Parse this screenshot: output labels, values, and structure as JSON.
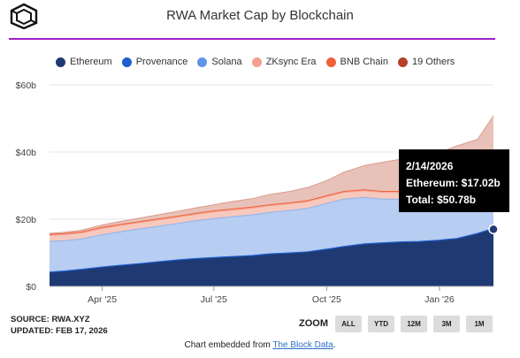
{
  "title": "RWA Market Cap by Blockchain",
  "logo_icon": "blockchain-cube-logo",
  "legend": [
    {
      "label": "Ethereum",
      "color": "#1f3a73"
    },
    {
      "label": "Provenance",
      "color": "#1f5fcf"
    },
    {
      "label": "Solana",
      "color": "#5e95e8"
    },
    {
      "label": "ZKsync Era",
      "color": "#f3a08e"
    },
    {
      "label": "BNB Chain",
      "color": "#f0603a"
    },
    {
      "label": "19 Others",
      "color": "#b8402a"
    }
  ],
  "footer": {
    "source": "SOURCE: RWA.XYZ",
    "updated": "UPDATED: FEB 17, 2026"
  },
  "zoom": {
    "label": "ZOOM",
    "buttons": [
      "ALL",
      "YTD",
      "12M",
      "3M",
      "1M"
    ]
  },
  "embed": {
    "prefix": "Chart embedded from ",
    "link": "The Block Data",
    "suffix": "."
  },
  "tooltip": {
    "date": "2/14/2026",
    "series_line": "Ethereum: $17.02b",
    "total_line": "Total: $50.78b"
  },
  "chart_data": {
    "type": "area",
    "stacked": true,
    "title": "RWA Market Cap by Blockchain",
    "y_ticks": [
      "$0",
      "$20b",
      "$40b",
      "$60b"
    ],
    "y_tick_values": [
      0,
      20,
      40,
      60
    ],
    "ylim": [
      0,
      60
    ],
    "y_unit": "billions USD",
    "x_ticks": [
      "Apr '25",
      "Jul '25",
      "Oct '25",
      "Jan '26"
    ],
    "x_tick_dates": [
      "2025-04-01",
      "2025-07-01",
      "2025-10-01",
      "2026-01-01"
    ],
    "x": [
      "2025-02-17",
      "2025-03-01",
      "2025-03-15",
      "2025-04-01",
      "2025-04-15",
      "2025-05-01",
      "2025-05-15",
      "2025-06-01",
      "2025-06-15",
      "2025-07-01",
      "2025-07-15",
      "2025-08-01",
      "2025-08-15",
      "2025-09-01",
      "2025-09-15",
      "2025-10-01",
      "2025-10-15",
      "2025-11-01",
      "2025-11-15",
      "2025-12-01",
      "2025-12-15",
      "2026-01-01",
      "2026-01-15",
      "2026-02-01",
      "2026-02-14"
    ],
    "series": [
      {
        "name": "Ethereum",
        "color": "#1f3a73",
        "values": [
          4.0,
          4.3,
          4.8,
          5.5,
          6.0,
          6.5,
          7.0,
          7.6,
          8.0,
          8.3,
          8.6,
          8.9,
          9.4,
          9.7,
          10.0,
          10.8,
          11.6,
          12.4,
          12.7,
          13.0,
          13.1,
          13.5,
          14.0,
          15.5,
          17.02
        ]
      },
      {
        "name": "Provenance",
        "color": "#1f5fcf",
        "values": [
          0.3,
          0.3,
          0.3,
          0.3,
          0.3,
          0.3,
          0.3,
          0.3,
          0.3,
          0.3,
          0.3,
          0.3,
          0.3,
          0.3,
          0.3,
          0.3,
          0.3,
          0.3,
          0.3,
          0.3,
          0.3,
          0.3,
          0.3,
          0.3,
          0.3
        ]
      },
      {
        "name": "Solana",
        "color": "#5e95e8",
        "values": [
          9.1,
          9.0,
          9.0,
          9.6,
          9.9,
          10.3,
          10.5,
          10.8,
          11.2,
          11.6,
          11.8,
          12.1,
          12.3,
          12.6,
          12.9,
          13.6,
          14.1,
          13.8,
          13.0,
          12.7,
          12.5,
          12.2,
          11.7,
          9.7,
          8.2
        ]
      },
      {
        "name": "ZKsync Era",
        "color": "#f3a08e",
        "values": [
          1.8,
          1.8,
          1.8,
          1.9,
          1.9,
          1.9,
          1.9,
          1.9,
          1.9,
          2.0,
          2.0,
          2.0,
          2.0,
          2.0,
          2.0,
          2.0,
          2.0,
          2.0,
          2.0,
          2.0,
          2.0,
          2.0,
          2.0,
          2.0,
          2.0
        ]
      },
      {
        "name": "BNB Chain",
        "color": "#f0603a",
        "values": [
          0.3,
          0.3,
          0.3,
          0.3,
          0.3,
          0.3,
          0.3,
          0.3,
          0.3,
          0.3,
          0.3,
          0.3,
          0.3,
          0.3,
          0.3,
          0.3,
          0.3,
          0.3,
          0.3,
          0.3,
          0.3,
          0.3,
          0.3,
          0.3,
          0.3
        ]
      },
      {
        "name": "19 Others",
        "color": "#b8402a",
        "values": [
          0.3,
          0.4,
          0.5,
          0.7,
          0.9,
          1.0,
          1.2,
          1.4,
          1.6,
          1.8,
          2.2,
          2.5,
          3.0,
          3.4,
          3.9,
          4.5,
          5.7,
          7.2,
          8.6,
          9.6,
          10.3,
          11.6,
          13.5,
          16.0,
          22.96
        ]
      }
    ],
    "highlight": {
      "date": "2026-02-14",
      "series": "Ethereum",
      "value": 17.02,
      "total": 50.78
    },
    "grid": true,
    "legend_position": "top"
  }
}
